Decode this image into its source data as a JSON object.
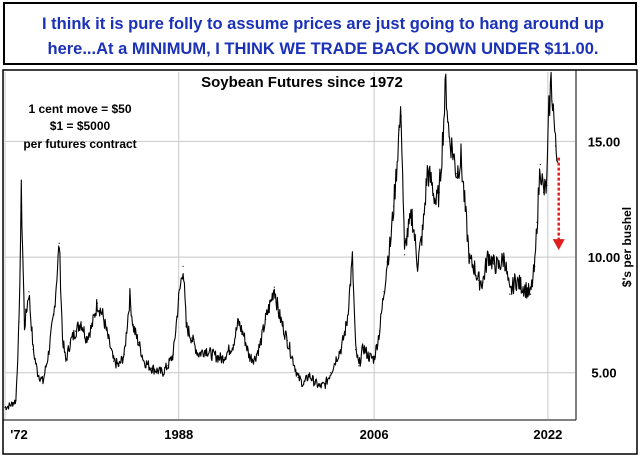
{
  "header": {
    "text": "I think it is pure folly to assume prices are just going to hang around up here...At a MINIMUM, I THINK WE TRADE BACK DOWN UNDER $11.00."
  },
  "annotation": {
    "lines": [
      "1 cent move = $50",
      "$1 = $5000",
      "per futures contract"
    ]
  },
  "colors": {
    "header_text": "#1a31b8",
    "line": "#000000",
    "arrow": "#e02020",
    "grid": "#c8c8c8"
  },
  "chart_data": {
    "type": "line",
    "title": "Soybean Futures since 1972",
    "xlabel": "",
    "ylabel": "$'s per bushel",
    "x_ticks": [
      "'72",
      "1988",
      "2006",
      "2022"
    ],
    "y_ticks": [
      "5.00",
      "10.00",
      "15.00"
    ],
    "ylim": [
      3.0,
      18.0
    ],
    "xlim": [
      1972,
      2024.5
    ],
    "grid": true,
    "series": [
      {
        "x": [
          1972.0,
          1972.5,
          1973.0,
          1973.3,
          1973.5,
          1973.8,
          1974.2,
          1974.6,
          1975.0,
          1975.5,
          1976.0,
          1976.5,
          1977.0,
          1977.3,
          1977.6,
          1978.0,
          1978.5,
          1979.0,
          1979.5,
          1980.0,
          1980.5,
          1981.0,
          1981.5,
          1982.0,
          1982.5,
          1983.0,
          1983.5,
          1983.8,
          1984.3,
          1984.8,
          1985.5,
          1986.0,
          1986.5,
          1987.0,
          1987.5,
          1988.0,
          1988.4,
          1988.7,
          1989.2,
          1989.8,
          1990.5,
          1991.0,
          1991.5,
          1992.0,
          1992.5,
          1993.0,
          1993.5,
          1994.0,
          1994.5,
          1995.0,
          1995.5,
          1996.0,
          1996.5,
          1996.8,
          1997.2,
          1997.6,
          1998.0,
          1998.5,
          1999.0,
          1999.5,
          2000.0,
          2000.5,
          2001.0,
          2001.5,
          2002.0,
          2002.5,
          2003.0,
          2003.5,
          2004.0,
          2004.3,
          2004.6,
          2005.0,
          2005.5,
          2006.0,
          2006.5,
          2006.9,
          2007.2,
          2007.5,
          2007.8,
          2008.0,
          2008.3,
          2008.5,
          2008.8,
          2009.0,
          2009.5,
          2010.0,
          2010.5,
          2010.9,
          2011.3,
          2011.7,
          2012.0,
          2012.3,
          2012.6,
          2012.9,
          2013.2,
          2013.6,
          2014.0,
          2014.4,
          2014.8,
          2015.2,
          2015.6,
          2016.0,
          2016.5,
          2017.0,
          2017.5,
          2018.0,
          2018.5,
          2019.0,
          2019.5,
          2020.0,
          2020.4,
          2020.8,
          2021.0,
          2021.3,
          2021.6,
          2021.9,
          2022.1,
          2022.3,
          2022.5,
          2022.7,
          2022.9
        ],
        "y": [
          3.5,
          3.6,
          3.8,
          7.2,
          12.8,
          7.0,
          8.5,
          6.0,
          5.0,
          4.6,
          5.8,
          7.5,
          10.6,
          6.5,
          5.5,
          6.3,
          6.8,
          7.2,
          6.5,
          7.0,
          8.0,
          7.5,
          6.5,
          5.5,
          5.3,
          5.8,
          8.3,
          7.0,
          6.3,
          5.5,
          5.2,
          5.1,
          5.0,
          5.3,
          5.8,
          8.2,
          9.6,
          7.0,
          6.5,
          5.8,
          6.0,
          5.8,
          5.7,
          5.6,
          5.9,
          6.2,
          7.2,
          6.6,
          5.7,
          5.6,
          6.2,
          7.3,
          8.1,
          8.7,
          7.6,
          7.0,
          6.4,
          5.6,
          4.8,
          4.5,
          4.9,
          4.6,
          4.4,
          4.5,
          5.0,
          5.6,
          6.1,
          7.2,
          9.9,
          6.0,
          5.3,
          6.1,
          5.7,
          5.6,
          6.8,
          8.5,
          9.8,
          10.6,
          12.2,
          13.4,
          15.5,
          16.1,
          10.1,
          10.9,
          11.8,
          9.7,
          11.2,
          13.7,
          13.2,
          12.3,
          12.8,
          15.0,
          17.5,
          15.2,
          14.7,
          13.6,
          14.3,
          12.0,
          9.8,
          9.6,
          9.0,
          8.9,
          10.1,
          9.7,
          9.6,
          10.0,
          8.4,
          9.0,
          8.8,
          8.6,
          8.4,
          9.6,
          11.5,
          14.0,
          12.8,
          13.1,
          16.3,
          17.6,
          16.5,
          14.8,
          14.1
        ]
      }
    ],
    "arrow": {
      "from": [
        2023.0,
        14.3
      ],
      "to": [
        2023.0,
        10.3
      ]
    }
  }
}
